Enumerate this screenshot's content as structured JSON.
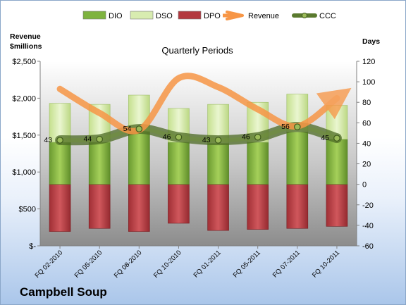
{
  "chart_data": {
    "type": "bar",
    "title": "Quarterly Periods",
    "company": "Campbell Soup",
    "categories": [
      "FQ 02-2010",
      "FQ 05-2010",
      "FQ 08-2010",
      "FQ 10-2010",
      "FQ 01-2011",
      "FQ 05-2011",
      "FQ 07-2011",
      "FQ 10-2011"
    ],
    "y_left": {
      "label_line1": "Revenue",
      "label_line2": "$millions",
      "range": [
        0,
        2500
      ],
      "ticks": [
        0,
        500,
        1000,
        1500,
        2000,
        2500
      ],
      "tick_labels": [
        "$-",
        "$500",
        "$1,000",
        "$1,500",
        "$2,000",
        "$2,500"
      ]
    },
    "y_right": {
      "label": "Days",
      "range": [
        -60,
        120
      ],
      "ticks": [
        -60,
        -40,
        -20,
        0,
        20,
        40,
        60,
        80,
        100,
        120
      ],
      "tick_labels": [
        "-60",
        "-40",
        "-20",
        "0",
        "20",
        "40",
        "60",
        "80",
        "100",
        "120"
      ]
    },
    "series": [
      {
        "name": "DIO",
        "axis": "right",
        "kind": "stacked-bar",
        "color": "#7eb33f",
        "values": [
          41,
          41,
          52,
          41,
          40,
          41,
          51,
          44
        ]
      },
      {
        "name": "DSO",
        "axis": "right",
        "kind": "stacked-bar",
        "color": "#d8ecb0",
        "values": [
          38,
          37,
          35,
          33,
          38,
          39,
          37,
          33
        ]
      },
      {
        "name": "DPO",
        "axis": "right",
        "kind": "negative-bar",
        "color": "#b3393f",
        "values": [
          -46,
          -43,
          -46,
          -38,
          -45,
          -44,
          -43,
          -41
        ]
      },
      {
        "name": "Revenue",
        "axis": "left",
        "kind": "line",
        "color": "#f79646",
        "values": [
          2125,
          1800,
          1570,
          2270,
          2150,
          1850,
          1620,
          2000
        ]
      },
      {
        "name": "CCC",
        "axis": "right",
        "kind": "line",
        "color": "#5a7a2e",
        "values": [
          43,
          44,
          54,
          46,
          43,
          46,
          56,
          45
        ],
        "labels": [
          "43",
          "44",
          "54",
          "46",
          "43",
          "46",
          "56",
          "45"
        ]
      }
    ],
    "legend": {
      "placement": "top",
      "items": [
        {
          "name": "DIO",
          "symbol": "box",
          "color": "#7eb33f"
        },
        {
          "name": "DSO",
          "symbol": "box",
          "color": "#d8ecb0"
        },
        {
          "name": "DPO",
          "symbol": "box",
          "color": "#b3393f"
        },
        {
          "name": "Revenue",
          "symbol": "arrow",
          "color": "#f79646"
        },
        {
          "name": "CCC",
          "symbol": "line-marker",
          "color": "#5a7a2e"
        }
      ]
    },
    "grid": false
  }
}
